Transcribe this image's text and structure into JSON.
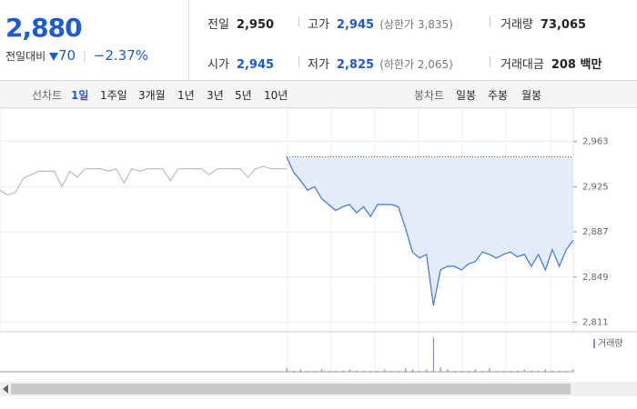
{
  "header": {
    "price": "2,880",
    "change_label": "전일대비",
    "change": "70",
    "change_rate": "−2.37%"
  },
  "stats": [
    {
      "label": "전일",
      "value": "2,950"
    },
    {
      "label": "고가",
      "value": "2,945",
      "note": "(상한가 3,835)"
    },
    {
      "label": "거래량",
      "value": "73,065"
    },
    {
      "label": "시가",
      "value": "2,945"
    },
    {
      "label": "저가",
      "value": "2,825",
      "note": "(하한가 2,065)"
    },
    {
      "label": "거래대금",
      "value": "208 백만"
    }
  ],
  "tabs": {
    "line_label": "선차트",
    "periods": [
      "1일",
      "1주일",
      "3개월",
      "1년",
      "3년",
      "5년",
      "10년"
    ],
    "active": 0,
    "candle_label": "봉차트",
    "candle_periods": [
      "일봉",
      "주봉",
      "월봉"
    ]
  },
  "chart_data": {
    "type": "line",
    "ylim": [
      2803,
      2991
    ],
    "yticks": [
      {
        "value": 2963,
        "label": "2,963"
      },
      {
        "value": 2925,
        "label": "2,925"
      },
      {
        "value": 2887,
        "label": "2,887"
      },
      {
        "value": 2849,
        "label": "2,849"
      },
      {
        "value": 2811,
        "label": "2,811"
      }
    ],
    "reference": 2950,
    "series": [
      {
        "color": "#bbbbbb",
        "values": [
          2922,
          2918,
          2920,
          2932,
          2935,
          2938,
          2938,
          2938,
          2925,
          2938,
          2933,
          2940,
          2940,
          2940,
          2938,
          2940,
          2928,
          2940,
          2938,
          2940,
          2940,
          2940,
          2930,
          2940,
          2940,
          2940,
          2940,
          2935,
          2940,
          2940,
          2940,
          2940,
          2933,
          2940,
          2942,
          2940,
          2940,
          2940
        ]
      },
      {
        "color": "#3f74d9",
        "fill": "#e3ecfa",
        "values": [
          2950,
          2937,
          2930,
          2922,
          2925,
          2915,
          2910,
          2905,
          2908,
          2910,
          2903,
          2908,
          2900,
          2910,
          2910,
          2910,
          2908,
          2890,
          2870,
          2865,
          2868,
          2825,
          2855,
          2858,
          2858,
          2855,
          2860,
          2862,
          2870,
          2868,
          2865,
          2868,
          2870,
          2866,
          2868,
          2858,
          2868,
          2855,
          2872,
          2858,
          2872,
          2880
        ]
      }
    ],
    "volume_label": "거래량",
    "volume_color": "#9b7fc4",
    "volumes": [
      3,
      1,
      2,
      1,
      1,
      2,
      1,
      1,
      1,
      2,
      1,
      1,
      1,
      1,
      2,
      1,
      1,
      3,
      2,
      1,
      2,
      30,
      4,
      2,
      1,
      1,
      1,
      2,
      1,
      3,
      1,
      1,
      1,
      1,
      2,
      1,
      1,
      2,
      1,
      1,
      1,
      2
    ]
  }
}
